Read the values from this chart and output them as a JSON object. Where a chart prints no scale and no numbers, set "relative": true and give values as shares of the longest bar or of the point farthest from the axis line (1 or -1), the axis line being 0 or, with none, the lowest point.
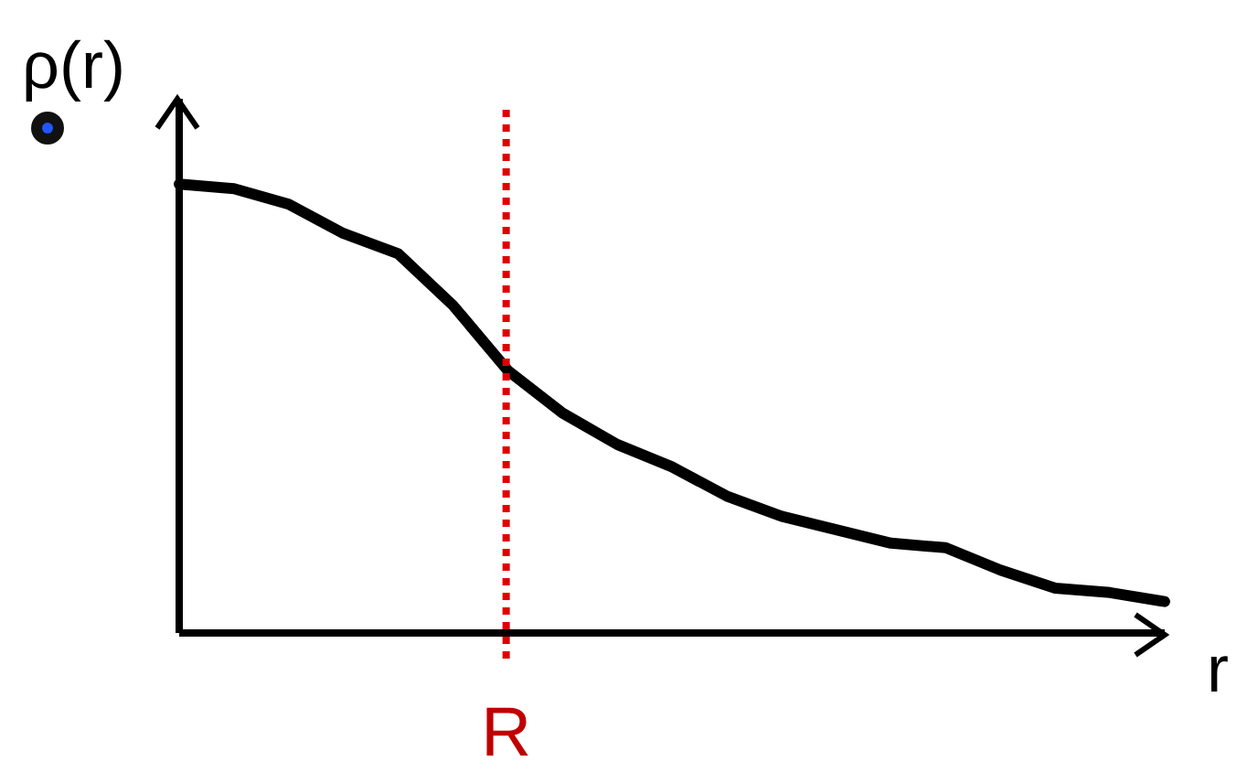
{
  "chart_data": {
    "type": "line",
    "relative": true,
    "ylabel": "ρ(r)",
    "xlabel": "r",
    "line_style": "solid",
    "categories": [
      null,
      null,
      null,
      null,
      null,
      null,
      null,
      null,
      null,
      null,
      null,
      null,
      null,
      null,
      null,
      null,
      null,
      null,
      null
    ],
    "series": [
      {
        "color": "#000000",
        "values": [
          1,
          0.99,
          0.955,
          0.89,
          0.845,
          0.73,
          0.585,
          0.49,
          0.42,
          0.37,
          0.305,
          0.26,
          0.23,
          0.2,
          0.19,
          0.14,
          0.1,
          0.09,
          0.07
        ]
      }
    ],
    "annotations": [
      "R"
    ]
  }
}
